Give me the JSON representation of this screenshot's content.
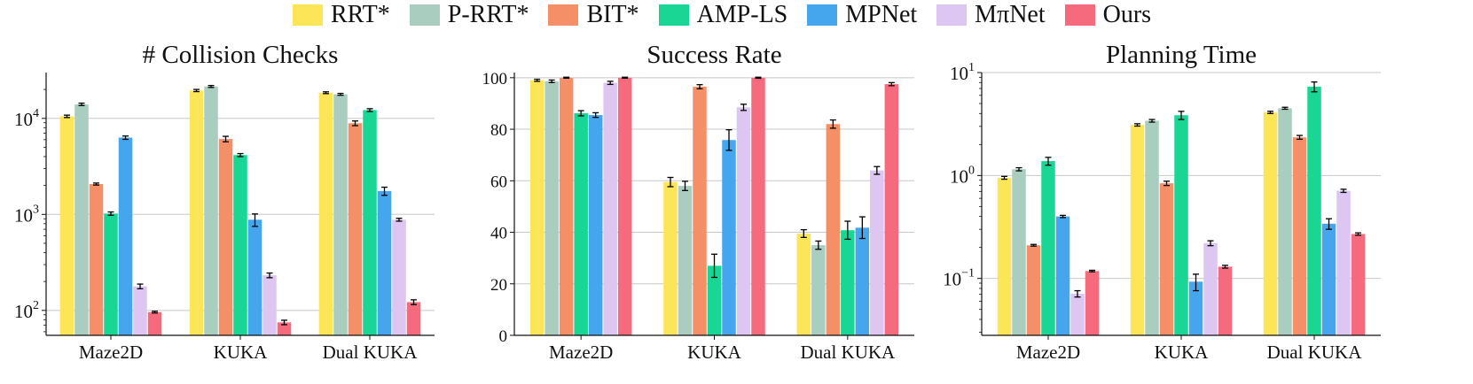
{
  "legend": [
    {
      "name": "RRT*",
      "color": "#FCE557"
    },
    {
      "name": "P-RRT*",
      "color": "#A9CEC0"
    },
    {
      "name": "BIT*",
      "color": "#F58F68"
    },
    {
      "name": "AMP-LS",
      "color": "#19D695"
    },
    {
      "name": "MPNet",
      "color": "#45A6EE"
    },
    {
      "name": "MπNet",
      "color": "#DEC6F3"
    },
    {
      "name": "Ours",
      "color": "#F56A7C"
    }
  ],
  "chart_data": [
    {
      "type": "bar",
      "title": "# Collision Checks",
      "scale": "log",
      "ylim": [
        55,
        30000
      ],
      "ticks": [
        {
          "v": 100,
          "b": "10",
          "e": "2"
        },
        {
          "v": 1000,
          "b": "10",
          "e": "3"
        },
        {
          "v": 10000,
          "b": "10",
          "e": "4"
        }
      ],
      "grid": true,
      "categories": [
        "Maze2D",
        "KUKA",
        "Dual KUKA"
      ],
      "series": [
        {
          "name": "RRT*",
          "values": [
            10500,
            19500,
            18500
          ],
          "errors": [
            300,
            500,
            400
          ]
        },
        {
          "name": "P-RRT*",
          "values": [
            14000,
            21500,
            17800
          ],
          "errors": [
            400,
            500,
            400
          ]
        },
        {
          "name": "BIT*",
          "values": [
            2070,
            6100,
            8900
          ],
          "errors": [
            50,
            400,
            500
          ]
        },
        {
          "name": "AMP-LS",
          "values": [
            1020,
            4150,
            12200
          ],
          "errors": [
            40,
            150,
            400
          ]
        },
        {
          "name": "MPNet",
          "values": [
            6300,
            880,
            1750
          ],
          "errors": [
            250,
            130,
            170
          ]
        },
        {
          "name": "MπNet",
          "values": [
            178,
            232,
            880
          ],
          "errors": [
            10,
            13,
            30
          ]
        },
        {
          "name": "Ours",
          "values": [
            96,
            75,
            122
          ],
          "errors": [
            2,
            4,
            7
          ]
        }
      ]
    },
    {
      "type": "bar",
      "title": "Success Rate",
      "scale": "linear",
      "ylim": [
        0,
        102
      ],
      "ticks": [
        {
          "v": 0,
          "t": "0"
        },
        {
          "v": 20,
          "t": "20"
        },
        {
          "v": 40,
          "t": "40"
        },
        {
          "v": 60,
          "t": "60"
        },
        {
          "v": 80,
          "t": "80"
        },
        {
          "v": 100,
          "t": "100"
        }
      ],
      "grid": true,
      "categories": [
        "Maze2D",
        "KUKA",
        "Dual KUKA"
      ],
      "series": [
        {
          "name": "RRT*",
          "values": [
            99,
            59.5,
            39.5
          ],
          "errors": [
            0.4,
            1.8,
            1.5
          ]
        },
        {
          "name": "P-RRT*",
          "values": [
            98.6,
            58,
            35
          ],
          "errors": [
            0.5,
            1.8,
            1.6
          ]
        },
        {
          "name": "BIT*",
          "values": [
            100,
            96.5,
            82
          ],
          "errors": [
            0.2,
            0.8,
            1.6
          ]
        },
        {
          "name": "AMP-LS",
          "values": [
            86.2,
            27,
            40.8
          ],
          "errors": [
            1,
            4.5,
            3.5
          ]
        },
        {
          "name": "MPNet",
          "values": [
            85.5,
            75.8,
            41.8
          ],
          "errors": [
            0.9,
            4,
            4.2
          ]
        },
        {
          "name": "MπNet",
          "values": [
            98,
            88.5,
            64
          ],
          "errors": [
            0.6,
            1.2,
            1.5
          ]
        },
        {
          "name": "Ours",
          "values": [
            100,
            100,
            97.5
          ],
          "errors": [
            0.2,
            0.2,
            0.6
          ]
        }
      ]
    },
    {
      "type": "bar",
      "title": "Planning Time",
      "scale": "log",
      "ylim": [
        0.028,
        10
      ],
      "ticks": [
        {
          "v": 0.1,
          "b": "10",
          "e": "−1"
        },
        {
          "v": 1,
          "b": "10",
          "e": "0"
        },
        {
          "v": 10,
          "b": "10",
          "e": "1"
        }
      ],
      "grid": true,
      "categories": [
        "Maze2D",
        "KUKA",
        "Dual KUKA"
      ],
      "series": [
        {
          "name": "RRT*",
          "values": [
            0.95,
            3.1,
            4.1
          ],
          "errors": [
            0.03,
            0.08,
            0.1
          ]
        },
        {
          "name": "P-RRT*",
          "values": [
            1.15,
            3.4,
            4.5
          ],
          "errors": [
            0.04,
            0.1,
            0.1
          ]
        },
        {
          "name": "BIT*",
          "values": [
            0.21,
            0.84,
            2.35
          ],
          "errors": [
            0.004,
            0.04,
            0.1
          ]
        },
        {
          "name": "AMP-LS",
          "values": [
            1.38,
            3.85,
            7.3
          ],
          "errors": [
            0.12,
            0.35,
            0.8
          ]
        },
        {
          "name": "MPNet",
          "values": [
            0.4,
            0.093,
            0.34
          ],
          "errors": [
            0.01,
            0.017,
            0.04
          ]
        },
        {
          "name": "MπNet",
          "values": [
            0.071,
            0.22,
            0.71
          ],
          "errors": [
            0.005,
            0.012,
            0.025
          ]
        },
        {
          "name": "Ours",
          "values": [
            0.118,
            0.13,
            0.27
          ],
          "errors": [
            0.002,
            0.004,
            0.007
          ]
        }
      ]
    }
  ]
}
